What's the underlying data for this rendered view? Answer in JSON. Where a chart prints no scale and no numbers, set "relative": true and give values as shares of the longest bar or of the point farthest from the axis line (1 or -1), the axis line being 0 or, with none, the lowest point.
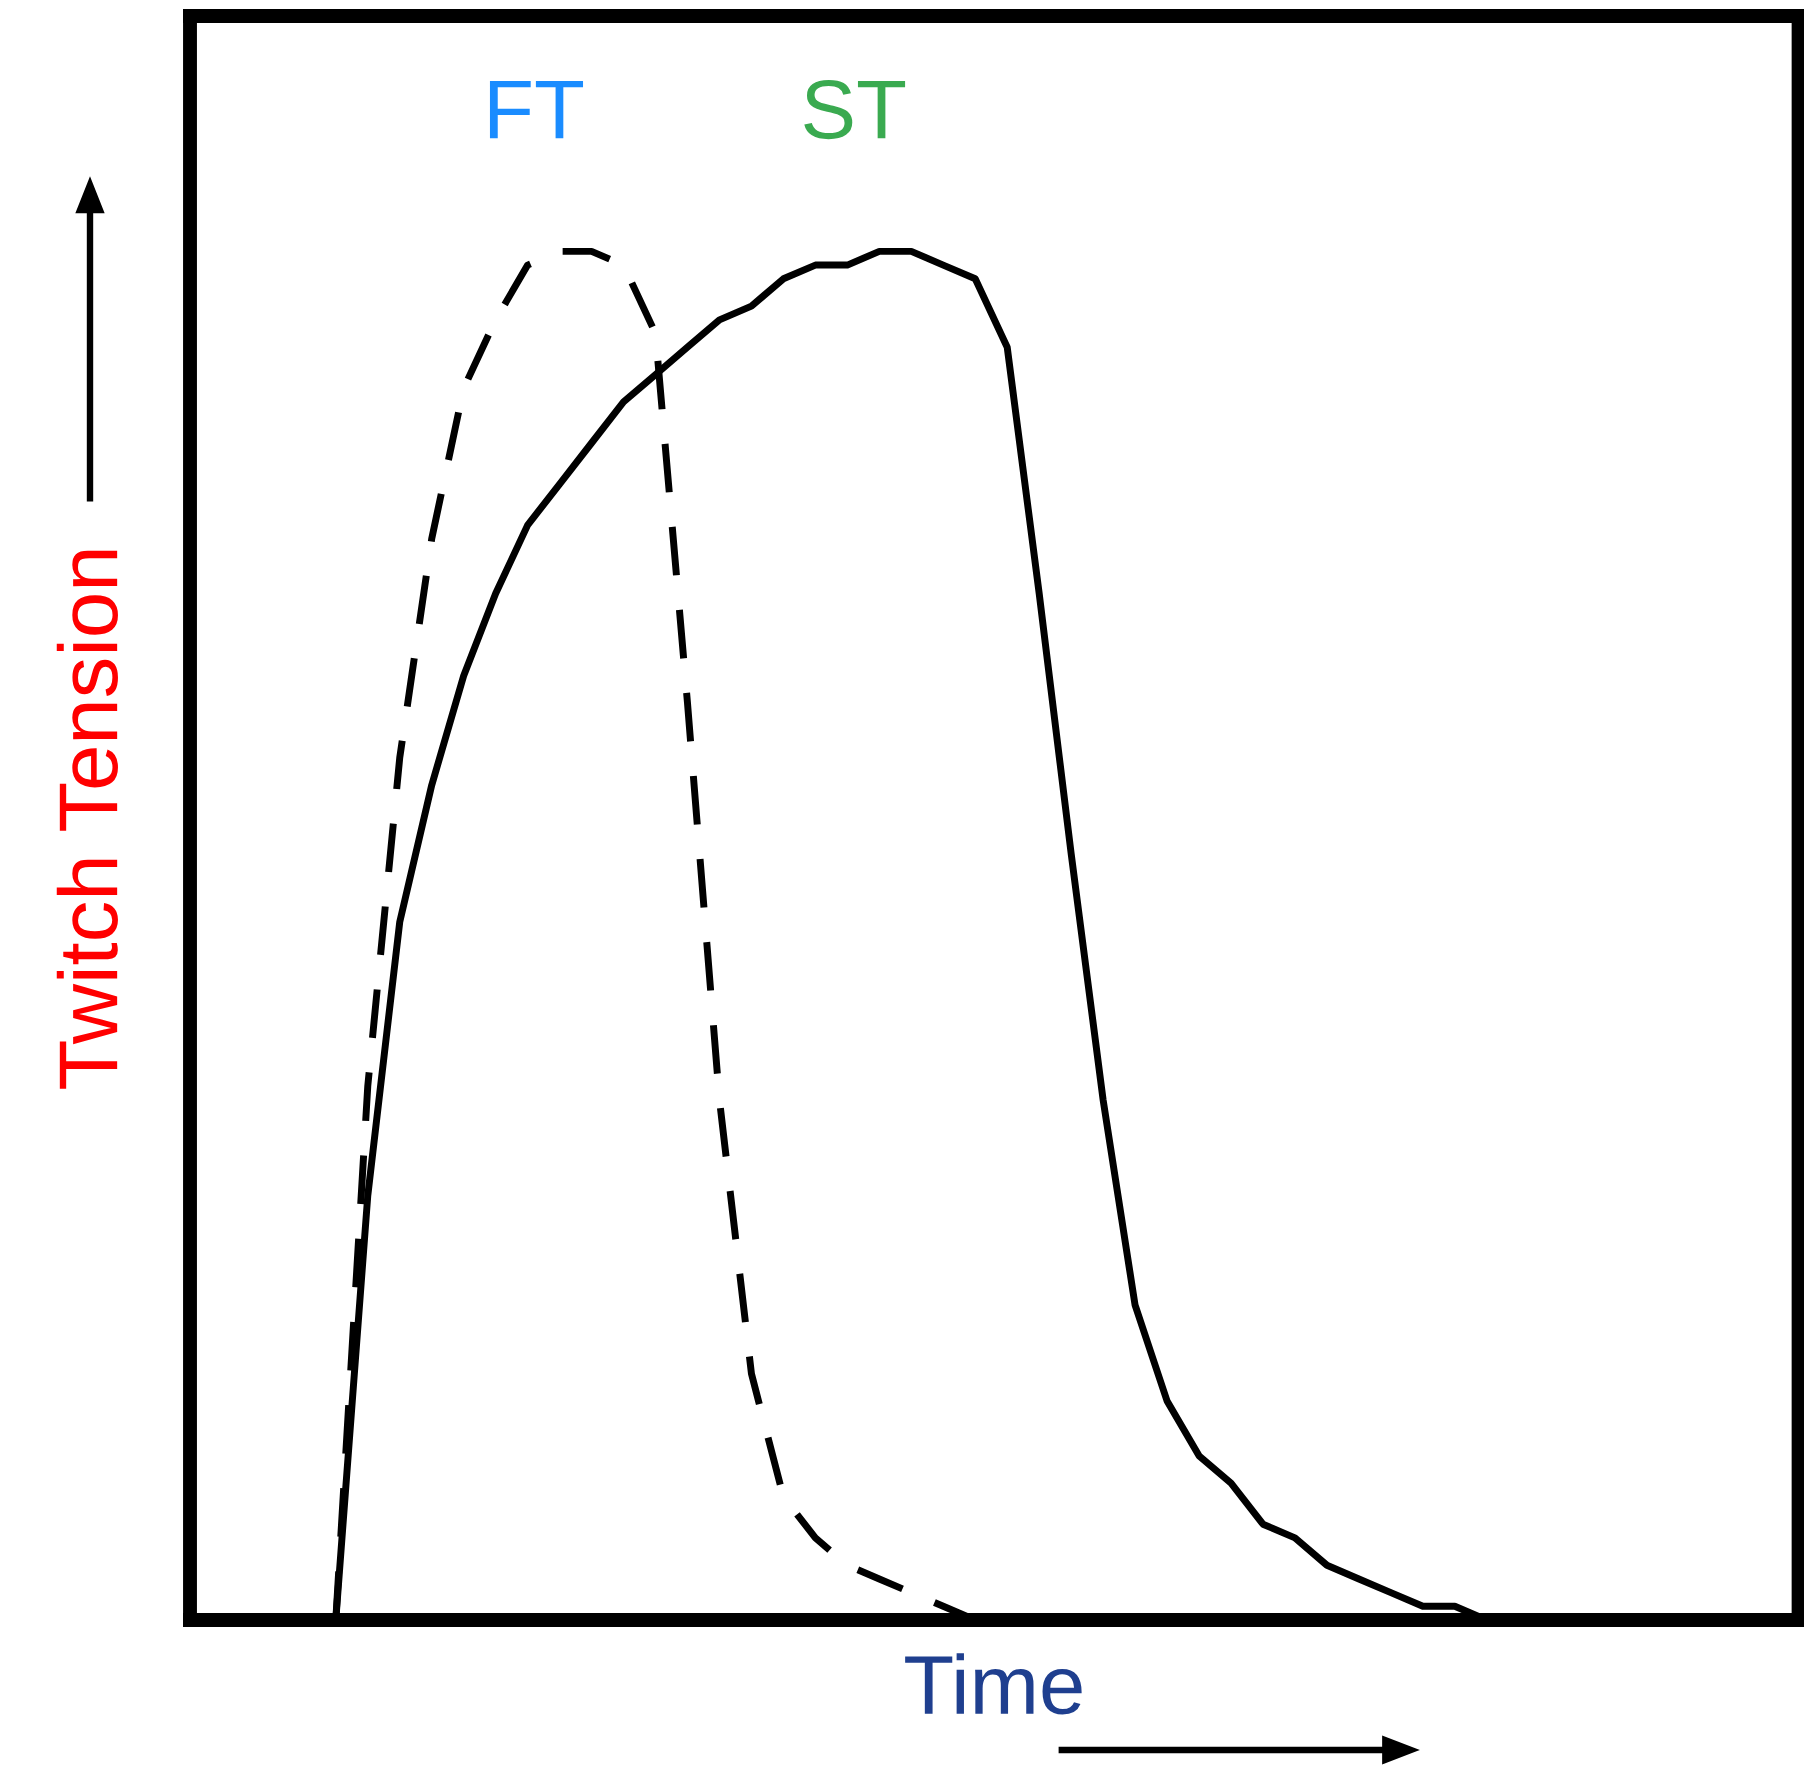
{
  "chart_data": {
    "type": "line",
    "relative": true,
    "xlabel": "Time",
    "ylabel": "Twitch Tension",
    "legend": false,
    "marker": "none",
    "categories": [
      null,
      null,
      null,
      null,
      null,
      null,
      null,
      null,
      null,
      null,
      null,
      null,
      null,
      null,
      null,
      null,
      null,
      null,
      null,
      null,
      null,
      null,
      null,
      null,
      null,
      null,
      null,
      null,
      null,
      null,
      null,
      null,
      null,
      null,
      null,
      null,
      null,
      null,
      null
    ],
    "series": [
      {
        "name": "FT",
        "color": "#000000",
        "line_style": "dashed",
        "values": [
          0,
          0.39,
          0.63,
          0.79,
          0.9,
          0.95,
          0.99,
          1.0,
          1.0,
          0.99,
          0.94,
          0.67,
          0.38,
          0.18,
          0.09,
          0.06,
          0.04,
          0.03,
          0.02,
          0.01,
          0.0,
          0,
          null,
          null,
          null,
          null,
          null,
          null,
          null,
          null,
          null,
          null,
          null,
          null,
          null,
          null,
          null,
          null,
          null
        ]
      },
      {
        "name": "ST",
        "color": "#000000",
        "line_style": "solid",
        "values": [
          0,
          0.31,
          0.51,
          0.61,
          0.69,
          0.75,
          0.8,
          0.83,
          0.86,
          0.89,
          0.91,
          0.93,
          0.95,
          0.96,
          0.98,
          0.99,
          0.99,
          1.0,
          1.0,
          0.99,
          0.98,
          0.93,
          0.75,
          0.56,
          0.38,
          0.23,
          0.16,
          0.12,
          0.1,
          0.07,
          0.06,
          0.04,
          0.03,
          0.02,
          0.01,
          0.01,
          0.0,
          0.0,
          0
        ]
      }
    ]
  }
}
